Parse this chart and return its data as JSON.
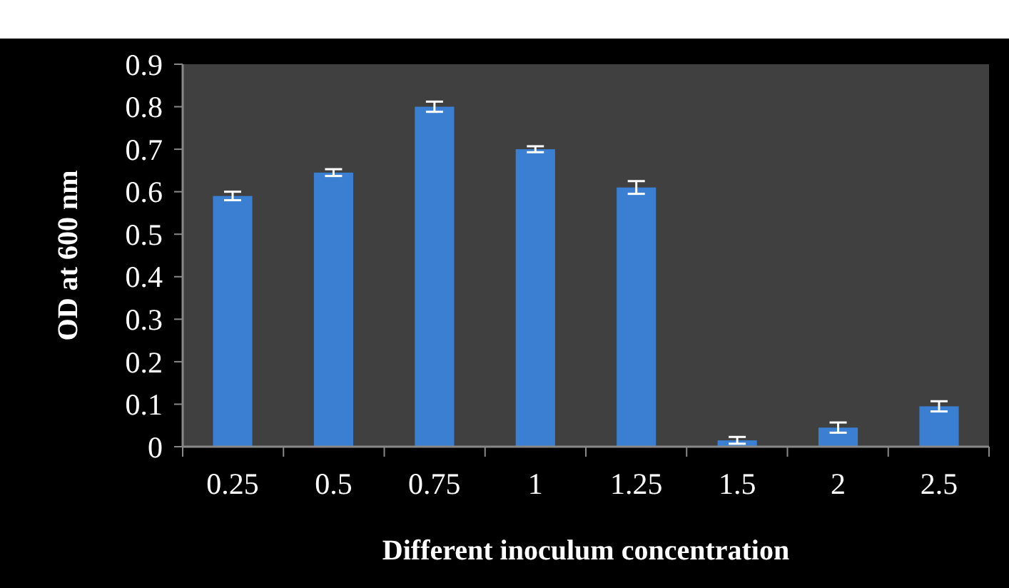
{
  "chart_data": {
    "type": "bar",
    "xlabel": "Different inoculum concentration",
    "ylabel": "OD at 600 nm",
    "categories": [
      "0.25",
      "0.5",
      "0.75",
      "1",
      "1.25",
      "1.5",
      "2",
      "2.5"
    ],
    "values": [
      0.59,
      0.645,
      0.8,
      0.7,
      0.61,
      0.015,
      0.045,
      0.095
    ],
    "errors": [
      0.01,
      0.008,
      0.012,
      0.007,
      0.015,
      0.008,
      0.012,
      0.012
    ],
    "color": "#3a7fd2",
    "ylim": [
      0,
      0.9
    ],
    "yticks": [
      0,
      0.1,
      0.2,
      0.3,
      0.4,
      0.5,
      0.6,
      0.7,
      0.8,
      0.9
    ],
    "grid": false
  }
}
